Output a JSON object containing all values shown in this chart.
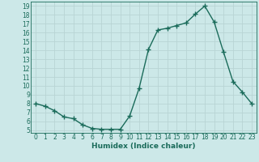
{
  "x": [
    0,
    1,
    2,
    3,
    4,
    5,
    6,
    7,
    8,
    9,
    10,
    11,
    12,
    13,
    14,
    15,
    16,
    17,
    18,
    19,
    20,
    21,
    22,
    23
  ],
  "y": [
    8.0,
    7.7,
    7.2,
    6.5,
    6.3,
    5.6,
    5.2,
    5.1,
    5.1,
    5.1,
    6.6,
    9.7,
    14.1,
    16.3,
    16.5,
    16.8,
    17.1,
    18.1,
    19.0,
    17.2,
    13.8,
    10.5,
    9.3,
    8.0
  ],
  "xlabel": "Humidex (Indice chaleur)",
  "ylabel": "",
  "xlim": [
    -0.5,
    23.5
  ],
  "ylim": [
    4.7,
    19.5
  ],
  "yticks": [
    5,
    6,
    7,
    8,
    9,
    10,
    11,
    12,
    13,
    14,
    15,
    16,
    17,
    18,
    19
  ],
  "xticks": [
    0,
    1,
    2,
    3,
    4,
    5,
    6,
    7,
    8,
    9,
    10,
    11,
    12,
    13,
    14,
    15,
    16,
    17,
    18,
    19,
    20,
    21,
    22,
    23
  ],
  "line_color": "#1a6b5a",
  "marker": "+",
  "marker_size": 4,
  "bg_color": "#cce8e8",
  "grid_color": "#b8d4d4",
  "xlabel_fontsize": 6.5,
  "tick_fontsize": 5.5,
  "linewidth": 1.0
}
